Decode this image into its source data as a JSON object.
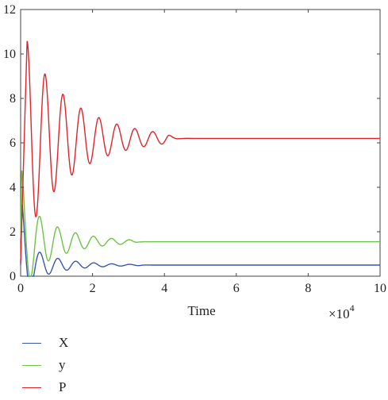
{
  "chart_data": {
    "type": "line",
    "xlabel": "Time",
    "x_multiplier": "×10",
    "x_multiplier_exp": "4",
    "xlim": [
      0,
      10
    ],
    "ylim": [
      0,
      12
    ],
    "xticks": [
      "0",
      "2",
      "4",
      "6",
      "8",
      "10"
    ],
    "yticks": [
      "0",
      "2",
      "4",
      "6",
      "8",
      "10",
      "12"
    ],
    "grid": false,
    "legend_placement": "below",
    "series": [
      {
        "name": "X",
        "color": "#3a57b0",
        "start": 0.5,
        "initial_peak": 3.3,
        "early_peak_time": 0.04,
        "steady": 0.5,
        "osc_amplitude": 0.9,
        "osc_period": 0.5,
        "osc_decay": 1.1,
        "settle_time": 3.3
      },
      {
        "name": "y",
        "color": "#6cc445",
        "start": 1.7,
        "initial_peak": 4.8,
        "early_peak_time": 0.03,
        "steady": 1.55,
        "osc_amplitude": 1.8,
        "osc_period": 0.5,
        "osc_decay": 1.0,
        "settle_time": 3.1
      },
      {
        "name": "P",
        "color": "#e0242a",
        "start": 0.6,
        "initial_peak": 10.6,
        "early_peak_time": 0.18,
        "steady": 6.2,
        "osc_amplitude": 4.2,
        "osc_period": 0.5,
        "osc_decay": 0.75,
        "settle_time": 4.1
      }
    ]
  }
}
